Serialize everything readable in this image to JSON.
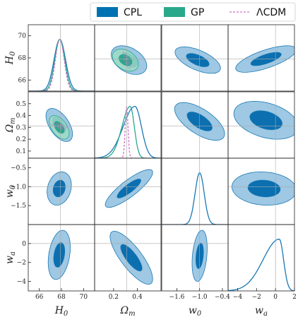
{
  "chart_data": {
    "type": "corner",
    "parameters": [
      {
        "key": "H0",
        "label_main": "H",
        "label_sub": "0",
        "range": [
          65.0,
          71.0
        ],
        "ticks": [
          66,
          68,
          70
        ],
        "tick_labels": [
          "66",
          "68",
          "70"
        ],
        "fiducial": 67.9
      },
      {
        "key": "Om",
        "label_main": "Ω",
        "label_sub": "m",
        "range": [
          0.04,
          0.6
        ],
        "ticks": [
          0.1,
          0.2,
          0.3,
          0.4,
          0.5
        ],
        "tick_labels": [
          "0.1",
          "0.2",
          "0.3",
          "0.4",
          "0.5"
        ],
        "fiducial": 0.31
      },
      {
        "key": "w0",
        "label_main": "w",
        "label_sub": "0",
        "range": [
          -2.0,
          -0.25
        ],
        "ticks": [
          -1.6,
          -1.0,
          -0.5,
          -0.4
        ],
        "tick_labels": [
          "−1.6",
          "−1.0",
          "−0.5",
          "−0.4"
        ],
        "fiducial": -1.0
      },
      {
        "key": "wa",
        "label_main": "w",
        "label_sub": "a",
        "range": [
          -5.0,
          2.0
        ],
        "ticks": [
          -4,
          -2,
          0,
          2
        ],
        "tick_labels": [
          "−4",
          "−2",
          "0",
          "2"
        ],
        "fiducial": 0.0
      }
    ],
    "axis_ticks": {
      "H0_x": {
        "values": [
          66,
          68,
          70
        ],
        "labels": [
          "66",
          "68",
          "70"
        ]
      },
      "H0_y": {
        "values": [
          66,
          68,
          70
        ],
        "labels": [
          "66",
          "68",
          "70"
        ]
      },
      "Om_x": {
        "values": [
          0.2,
          0.4
        ],
        "labels": [
          "0.2",
          "0.4"
        ]
      },
      "Om_y": {
        "values": [
          0.1,
          0.2,
          0.3,
          0.4,
          0.5
        ],
        "labels": [
          "0.1",
          "0.2",
          "0.3",
          "0.4",
          "0.5"
        ]
      },
      "w0_x": {
        "values": [
          -1.6,
          -1.0,
          -0.4
        ],
        "labels": [
          "−1.6",
          "−1.0",
          "−0.4"
        ]
      },
      "w0_y": {
        "values": [
          -1.5,
          -1.0,
          -0.5
        ],
        "labels": [
          "−1.5",
          "−1.0",
          "−0.5"
        ]
      },
      "wa_x": {
        "values": [
          -4,
          -2,
          0,
          2
        ],
        "labels": [
          "−4",
          "−2",
          "0",
          "2"
        ]
      },
      "wa_y": {
        "values": [
          -4,
          -2,
          0
        ],
        "labels": [
          "−4",
          "−2",
          "0"
        ]
      }
    },
    "legend": {
      "position": "top-right",
      "entries": [
        {
          "label": "CPL",
          "style": "filled",
          "color": "#0072b2"
        },
        {
          "label": "GP",
          "style": "filled",
          "color": "#2aa88c"
        },
        {
          "label": "ΛCDM",
          "style": "dashed",
          "color": "#d070c8"
        }
      ]
    },
    "colors": {
      "cpl_inner": "#0b6fb0",
      "cpl_outer": "#9ec8e3",
      "cpl_line": "#1a78b4",
      "gp_inner": "#1f9f84",
      "gp_outer": "#9ddcc4",
      "gp_line": "#2aa88c",
      "lcdm": "#d070c8",
      "guide": "#aaaaaa"
    },
    "marginals": {
      "H0": {
        "CPL": {
          "mean": 67.85,
          "sigma": 0.52
        },
        "GP": {
          "mean": 67.85,
          "sigma": 0.45
        },
        "LCDM": {
          "mean": 67.85,
          "sigma": 0.4
        }
      },
      "Om": {
        "CPL": {
          "mode": 0.38,
          "sigma_left": 0.1,
          "sigma_right": 0.055
        },
        "GP": {
          "mode": 0.34,
          "sigma_left": 0.07,
          "sigma_right": 0.035
        },
        "LCDM": {
          "mode": 0.31,
          "sigma_left": 0.012,
          "sigma_right": 0.012
        }
      },
      "w0": {
        "CPL": {
          "mode": -1.0,
          "sigma": 0.12
        }
      },
      "wa": {
        "CPL": {
          "mode": 0.4,
          "sigma_left": 1.7,
          "sigma_right": 0.45
        }
      }
    },
    "contours": [
      {
        "x": "H0",
        "y": "Om",
        "series": [
          {
            "name": "CPL",
            "center": [
              67.8,
              0.32
            ],
            "sx": 0.6,
            "sy": 0.07,
            "rho": -0.55,
            "levels": [
              1.0,
              2.0
            ]
          },
          {
            "name": "GP",
            "center": [
              67.8,
              0.3
            ],
            "sx": 0.45,
            "sy": 0.05,
            "rho": -0.5,
            "levels": [
              1.0,
              2.0
            ]
          },
          {
            "name": "LCDM",
            "center": [
              67.8,
              0.31
            ],
            "sx": 0.35,
            "sy": 0.012,
            "rho": -0.7,
            "levels": [
              1.0,
              2.0
            ]
          }
        ]
      },
      {
        "x": "H0",
        "y": "w0",
        "series": [
          {
            "name": "CPL",
            "center": [
              67.8,
              -1.05
            ],
            "sx": 0.55,
            "sy": 0.22,
            "rho": 0.2,
            "levels": [
              1.0,
              2.0
            ]
          }
        ]
      },
      {
        "x": "H0",
        "y": "wa",
        "series": [
          {
            "name": "CPL",
            "center": [
              67.8,
              -1.2
            ],
            "sx": 0.5,
            "sy": 1.3,
            "rho": 0.3,
            "levels": [
              1.0,
              2.0
            ]
          }
        ]
      },
      {
        "x": "Om",
        "y": "H0",
        "series": [
          {
            "name": "CPL",
            "center": [
              0.33,
              67.8
            ],
            "sx": 0.075,
            "sy": 0.65,
            "rho": -0.4,
            "levels": [
              1.0,
              2.0
            ]
          },
          {
            "name": "GP",
            "center": [
              0.3,
              67.8
            ],
            "sx": 0.055,
            "sy": 0.5,
            "rho": -0.35,
            "levels": [
              1.0,
              2.0
            ]
          },
          {
            "name": "LCDM",
            "center": [
              0.31,
              67.8
            ],
            "sx": 0.015,
            "sy": 0.38,
            "rho": -0.8,
            "levels": [
              1.0,
              2.0
            ]
          }
        ]
      },
      {
        "x": "Om",
        "y": "w0",
        "series": [
          {
            "name": "CPL",
            "center": [
              0.33,
              -1.05
            ],
            "sx": 0.1,
            "sy": 0.25,
            "rho": 0.85,
            "levels": [
              1.0,
              2.0
            ]
          }
        ]
      },
      {
        "x": "Om",
        "y": "wa",
        "series": [
          {
            "name": "CPL",
            "center": [
              0.35,
              -1.5
            ],
            "sx": 0.09,
            "sy": 1.4,
            "rho": -0.8,
            "levels": [
              1.0,
              2.0
            ]
          }
        ]
      },
      {
        "x": "w0",
        "y": "H0",
        "series": [
          {
            "name": "CPL",
            "center": [
              -1.05,
              67.8
            ],
            "sx": 0.3,
            "sy": 0.6,
            "rho": -0.6,
            "levels": [
              1.0,
              2.0
            ]
          }
        ]
      },
      {
        "x": "w0",
        "y": "Om",
        "series": [
          {
            "name": "CPL",
            "center": [
              -1.0,
              0.35
            ],
            "sx": 0.33,
            "sy": 0.08,
            "rho": -0.65,
            "levels": [
              1.0,
              2.0
            ]
          }
        ]
      },
      {
        "x": "w0",
        "y": "wa",
        "series": [
          {
            "name": "CPL",
            "center": [
              -1.0,
              -1.3
            ],
            "sx": 0.1,
            "sy": 1.35,
            "rho": 0.3,
            "levels": [
              1.0,
              2.0
            ]
          }
        ]
      },
      {
        "x": "wa",
        "y": "H0",
        "series": [
          {
            "name": "CPL",
            "center": [
              -1.0,
              67.9
            ],
            "sx": 1.6,
            "sy": 0.6,
            "rho": 0.7,
            "levels": [
              1.0,
              2.0
            ]
          }
        ]
      },
      {
        "x": "wa",
        "y": "Om",
        "series": [
          {
            "name": "CPL",
            "center": [
              -1.0,
              0.36
            ],
            "sx": 1.7,
            "sy": 0.08,
            "rho": -0.35,
            "levels": [
              1.0,
              2.0
            ]
          }
        ]
      },
      {
        "x": "wa",
        "y": "w0",
        "series": [
          {
            "name": "CPL",
            "center": [
              -1.2,
              -1.05
            ],
            "sx": 1.7,
            "sy": 0.22,
            "rho": -0.1,
            "levels": [
              1.0,
              2.0
            ]
          }
        ]
      }
    ],
    "panel_layout": {
      "x_params": [
        "H0",
        "Om",
        "w0",
        "wa"
      ],
      "y_params": [
        "H0",
        "Om",
        "w0",
        "wa"
      ],
      "diagonal": "marginal",
      "off_diagonal": "contours"
    }
  }
}
